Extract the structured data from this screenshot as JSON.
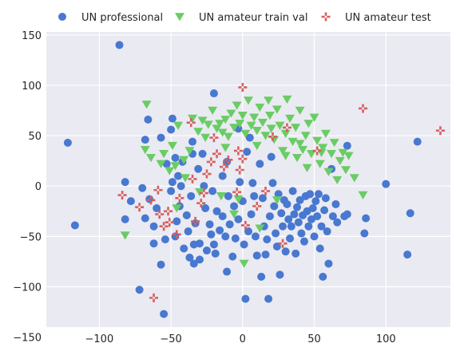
{
  "chart_data": {
    "type": "scatter",
    "title": "",
    "xlabel": "",
    "ylabel": "",
    "xlim": [
      -137,
      145
    ],
    "ylim": [
      -140,
      153
    ],
    "xticks": [
      -100,
      -50,
      0,
      50,
      100
    ],
    "yticks": [
      -150,
      -100,
      -50,
      0,
      50,
      100,
      150
    ],
    "tick_labels_x": [
      "−100",
      "−50",
      "0",
      "50",
      "100"
    ],
    "tick_labels_y": [
      "−150",
      "−100",
      "−50",
      "0",
      "50",
      "100",
      "150"
    ],
    "grid": true,
    "legend_position": "top",
    "background": "#eaeaf2",
    "series": [
      {
        "name": "UN professional",
        "marker": "circle",
        "color": "#4878d0",
        "points": [
          [
            -86,
            140
          ],
          [
            -122,
            43
          ],
          [
            -117,
            -39
          ],
          [
            -82,
            4
          ],
          [
            -82,
            -33
          ],
          [
            -78,
            -15
          ],
          [
            -72,
            -103
          ],
          [
            -68,
            46
          ],
          [
            -66,
            66
          ],
          [
            -70,
            -2
          ],
          [
            -68,
            -32
          ],
          [
            -65,
            -13
          ],
          [
            -62,
            -57
          ],
          [
            -62,
            -40
          ],
          [
            -60,
            -22
          ],
          [
            -57,
            48
          ],
          [
            -57,
            -78
          ],
          [
            -55,
            -127
          ],
          [
            -54,
            -53
          ],
          [
            -53,
            22
          ],
          [
            -50,
            56
          ],
          [
            -49,
            67
          ],
          [
            -50,
            -5
          ],
          [
            -49,
            4
          ],
          [
            -47,
            28
          ],
          [
            -47,
            -50
          ],
          [
            -46,
            -35
          ],
          [
            -45,
            10
          ],
          [
            -44,
            -20
          ],
          [
            -43,
            0
          ],
          [
            -42,
            24
          ],
          [
            -41,
            -62
          ],
          [
            -39,
            -29
          ],
          [
            -38,
            -45
          ],
          [
            -37,
            -71
          ],
          [
            -36,
            -10
          ],
          [
            -35,
            44
          ],
          [
            -35,
            32
          ],
          [
            -34,
            -58
          ],
          [
            -34,
            -77
          ],
          [
            -33,
            -37
          ],
          [
            -31,
            17
          ],
          [
            -30,
            -57
          ],
          [
            -30,
            -73
          ],
          [
            -28,
            32
          ],
          [
            -27,
            0
          ],
          [
            -26,
            -22
          ],
          [
            -25,
            -64
          ],
          [
            -23,
            -38
          ],
          [
            -22,
            -48
          ],
          [
            -21,
            -5
          ],
          [
            -20,
            -58
          ],
          [
            -20,
            92
          ],
          [
            -19,
            -67
          ],
          [
            -18,
            -25
          ],
          [
            -16,
            -44
          ],
          [
            -14,
            10
          ],
          [
            -14,
            -30
          ],
          [
            -12,
            -50
          ],
          [
            -11,
            -85
          ],
          [
            -11,
            24
          ],
          [
            -10,
            -10
          ],
          [
            -9,
            -38
          ],
          [
            -7,
            -70
          ],
          [
            -6,
            -20
          ],
          [
            -5,
            -52
          ],
          [
            -3,
            57
          ],
          [
            -3,
            -33
          ],
          [
            -2,
            4
          ],
          [
            0,
            -15
          ],
          [
            1,
            -58
          ],
          [
            2,
            -112
          ],
          [
            3,
            34
          ],
          [
            4,
            -45
          ],
          [
            5,
            48
          ],
          [
            6,
            -28
          ],
          [
            7,
            3
          ],
          [
            8,
            -10
          ],
          [
            9,
            -50
          ],
          [
            10,
            -69
          ],
          [
            12,
            22
          ],
          [
            13,
            -90
          ],
          [
            14,
            -12
          ],
          [
            15,
            -40
          ],
          [
            16,
            -68
          ],
          [
            17,
            -53
          ],
          [
            18,
            -112
          ],
          [
            19,
            -30
          ],
          [
            20,
            29
          ],
          [
            21,
            3
          ],
          [
            22,
            -20
          ],
          [
            23,
            -47
          ],
          [
            24,
            -60
          ],
          [
            25,
            -8
          ],
          [
            26,
            -88
          ],
          [
            27,
            -27
          ],
          [
            28,
            -40
          ],
          [
            29,
            -14
          ],
          [
            30,
            -65
          ],
          [
            31,
            -18
          ],
          [
            32,
            -33
          ],
          [
            33,
            -52
          ],
          [
            34,
            -40
          ],
          [
            35,
            -5
          ],
          [
            36,
            -28
          ],
          [
            37,
            -67
          ],
          [
            38,
            -21
          ],
          [
            39,
            -36
          ],
          [
            40,
            -14
          ],
          [
            41,
            -47
          ],
          [
            42,
            -29
          ],
          [
            43,
            -55
          ],
          [
            44,
            -10
          ],
          [
            45,
            -25
          ],
          [
            46,
            -40
          ],
          [
            47,
            -8
          ],
          [
            48,
            -33
          ],
          [
            49,
            -22
          ],
          [
            50,
            -50
          ],
          [
            51,
            -15
          ],
          [
            52,
            -30
          ],
          [
            53,
            -8
          ],
          [
            54,
            -62
          ],
          [
            55,
            -40
          ],
          [
            56,
            -90
          ],
          [
            57,
            -24
          ],
          [
            58,
            -12
          ],
          [
            59,
            -45
          ],
          [
            60,
            -77
          ],
          [
            62,
            17
          ],
          [
            63,
            -30
          ],
          [
            65,
            -18
          ],
          [
            66,
            -36
          ],
          [
            71,
            -30
          ],
          [
            73,
            40
          ],
          [
            73,
            -28
          ],
          [
            85,
            -47
          ],
          [
            86,
            -32
          ],
          [
            100,
            2
          ],
          [
            115,
            -68
          ],
          [
            117,
            -27
          ],
          [
            122,
            44
          ]
        ]
      },
      {
        "name": "UN amateur train val",
        "marker": "triangle-down",
        "color": "#6acc64",
        "points": [
          [
            -67,
            81
          ],
          [
            -68,
            36
          ],
          [
            -64,
            28
          ],
          [
            -57,
            22
          ],
          [
            -55,
            32
          ],
          [
            -51,
            15
          ],
          [
            -49,
            40
          ],
          [
            -47,
            20
          ],
          [
            -45,
            60
          ],
          [
            -41,
            26
          ],
          [
            -40,
            8
          ],
          [
            -35,
            67
          ],
          [
            -31,
            54
          ],
          [
            -28,
            65
          ],
          [
            -26,
            48
          ],
          [
            -24,
            61
          ],
          [
            -21,
            75
          ],
          [
            -18,
            57
          ],
          [
            -16,
            62
          ],
          [
            -14,
            53
          ],
          [
            -12,
            66
          ],
          [
            -10,
            49
          ],
          [
            -8,
            72
          ],
          [
            -6,
            58
          ],
          [
            -4,
            80
          ],
          [
            -2,
            62
          ],
          [
            0,
            70
          ],
          [
            2,
            52
          ],
          [
            4,
            85
          ],
          [
            6,
            60
          ],
          [
            8,
            68
          ],
          [
            10,
            55
          ],
          [
            12,
            78
          ],
          [
            14,
            63
          ],
          [
            16,
            50
          ],
          [
            18,
            85
          ],
          [
            19,
            70
          ],
          [
            20,
            57
          ],
          [
            22,
            46
          ],
          [
            24,
            76
          ],
          [
            26,
            60
          ],
          [
            28,
            35
          ],
          [
            30,
            52
          ],
          [
            31,
            86
          ],
          [
            33,
            67
          ],
          [
            35,
            44
          ],
          [
            37,
            58
          ],
          [
            38,
            28
          ],
          [
            40,
            75
          ],
          [
            42,
            36
          ],
          [
            44,
            50
          ],
          [
            46,
            62
          ],
          [
            48,
            32
          ],
          [
            50,
            68
          ],
          [
            52,
            45
          ],
          [
            54,
            22
          ],
          [
            56,
            38
          ],
          [
            58,
            52
          ],
          [
            60,
            14
          ],
          [
            62,
            32
          ],
          [
            64,
            43
          ],
          [
            66,
            6
          ],
          [
            68,
            25
          ],
          [
            70,
            33
          ],
          [
            72,
            16
          ],
          [
            74,
            30
          ],
          [
            78,
            8
          ],
          [
            84,
            -9
          ],
          [
            -82,
            -49
          ],
          [
            -46,
            -22
          ],
          [
            -30,
            -6
          ],
          [
            -15,
            -10
          ],
          [
            -6,
            -28
          ],
          [
            -3,
            -13
          ],
          [
            1,
            -77
          ],
          [
            12,
            -42
          ],
          [
            24,
            -14
          ],
          [
            40,
            42
          ],
          [
            55,
            33
          ],
          [
            -37,
            35
          ],
          [
            -12,
            38
          ],
          [
            10,
            40
          ],
          [
            30,
            30
          ],
          [
            45,
            18
          ]
        ]
      },
      {
        "name": "UN amateur test",
        "marker": "plus",
        "color": "#d65f5f",
        "points": [
          [
            -84,
            -9
          ],
          [
            -72,
            -21
          ],
          [
            -64,
            -14
          ],
          [
            -62,
            -111
          ],
          [
            -59,
            -4
          ],
          [
            -58,
            -28
          ],
          [
            -55,
            -40
          ],
          [
            -52,
            -25
          ],
          [
            -51,
            -36
          ],
          [
            -46,
            -48
          ],
          [
            -36,
            63
          ],
          [
            -35,
            7
          ],
          [
            -33,
            -35
          ],
          [
            -29,
            -17
          ],
          [
            -27,
            -7
          ],
          [
            -25,
            12
          ],
          [
            -22,
            24
          ],
          [
            -20,
            48
          ],
          [
            -18,
            32
          ],
          [
            -13,
            19
          ],
          [
            -10,
            26
          ],
          [
            -4,
            -6
          ],
          [
            -3,
            35
          ],
          [
            -2,
            16
          ],
          [
            0,
            98
          ],
          [
            0,
            27
          ],
          [
            2,
            -39
          ],
          [
            16,
            -5
          ],
          [
            21,
            49
          ],
          [
            28,
            -57
          ],
          [
            31,
            58
          ],
          [
            52,
            35
          ],
          [
            84,
            77
          ],
          [
            138,
            55
          ],
          [
            -44,
            -12
          ],
          [
            10,
            -20
          ]
        ]
      }
    ]
  }
}
